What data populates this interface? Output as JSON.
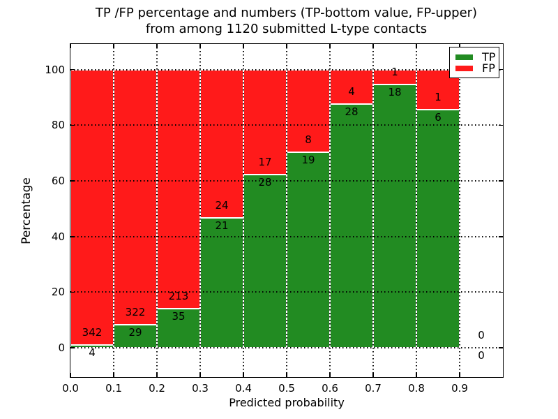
{
  "title": {
    "line1": "TP /FP percentage and numbers (TP-bottom value, FP-upper)",
    "line2": "from among 1120 submitted L-type contacts"
  },
  "chart_data": {
    "type": "bar",
    "stacked": true,
    "title": "TP /FP percentage and numbers (TP-bottom value, FP-upper) from among 1120 submitted L-type contacts",
    "xlabel": "Predicted probability",
    "ylabel": "Percentage",
    "total_contacts": 1120,
    "x_tick_labels": [
      "0.0",
      "0.1",
      "0.2",
      "0.3",
      "0.4",
      "0.5",
      "0.6",
      "0.7",
      "0.8",
      "0.9"
    ],
    "y_ticks": [
      0,
      20,
      40,
      60,
      80,
      100
    ],
    "xlim": [
      0.0,
      1.0
    ],
    "ylim": [
      -10.5,
      109.2
    ],
    "grid": {
      "style": "dotted",
      "color": "#000000"
    },
    "series": [
      {
        "name": "TP",
        "color": "#228b22"
      },
      {
        "name": "FP",
        "color": "#ff1a1a"
      }
    ],
    "bins": [
      {
        "x0": 0.0,
        "x1": 0.1,
        "tp": 4,
        "fp": 342
      },
      {
        "x0": 0.1,
        "x1": 0.2,
        "tp": 29,
        "fp": 322
      },
      {
        "x0": 0.2,
        "x1": 0.3,
        "tp": 35,
        "fp": 213
      },
      {
        "x0": 0.3,
        "x1": 0.4,
        "tp": 21,
        "fp": 24
      },
      {
        "x0": 0.4,
        "x1": 0.5,
        "tp": 28,
        "fp": 17
      },
      {
        "x0": 0.5,
        "x1": 0.6,
        "tp": 19,
        "fp": 8
      },
      {
        "x0": 0.6,
        "x1": 0.7,
        "tp": 28,
        "fp": 4
      },
      {
        "x0": 0.7,
        "x1": 0.8,
        "tp": 18,
        "fp": 1
      },
      {
        "x0": 0.8,
        "x1": 0.9,
        "tp": 6,
        "fp": 1
      },
      {
        "x0": 0.9,
        "x1": 1.0,
        "tp": 0,
        "fp": 0
      }
    ],
    "legend": {
      "position": "upper right",
      "entries": [
        {
          "label": "TP",
          "color": "#228b22"
        },
        {
          "label": "FP",
          "color": "#ff1a1a"
        }
      ]
    }
  }
}
